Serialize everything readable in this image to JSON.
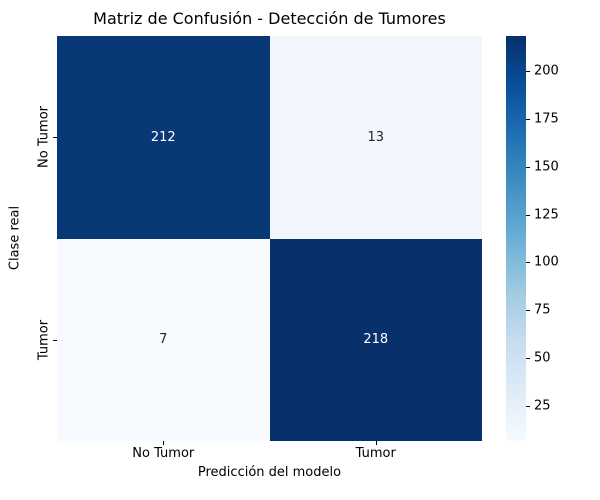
{
  "chart_data": {
    "type": "heatmap",
    "title": "Matriz de Confusión - Detección de Tumores",
    "xlabel": "Predicción del modelo",
    "ylabel": "Clase real",
    "x_categories": [
      "No Tumor",
      "Tumor"
    ],
    "y_categories": [
      "No Tumor",
      "Tumor"
    ],
    "values": [
      [
        212,
        13
      ],
      [
        7,
        218
      ]
    ],
    "vmin": 7,
    "vmax": 218,
    "colormap": "Blues",
    "colormap_stops": [
      {
        "pos": 0.0,
        "color": "#f7fbff"
      },
      {
        "pos": 0.125,
        "color": "#deebf7"
      },
      {
        "pos": 0.25,
        "color": "#c6dbef"
      },
      {
        "pos": 0.375,
        "color": "#9ecae1"
      },
      {
        "pos": 0.5,
        "color": "#6baed6"
      },
      {
        "pos": 0.625,
        "color": "#4292c6"
      },
      {
        "pos": 0.75,
        "color": "#2171b5"
      },
      {
        "pos": 0.875,
        "color": "#08519c"
      },
      {
        "pos": 1.0,
        "color": "#08306b"
      }
    ],
    "colorbar_ticks": [
      25,
      50,
      75,
      100,
      125,
      150,
      175,
      200
    ],
    "annot_color_dark_cells": "#ffffff",
    "annot_color_light_cells": "#262626",
    "background": "#ffffff",
    "legend_position": "right-colorbar",
    "grid": false
  }
}
